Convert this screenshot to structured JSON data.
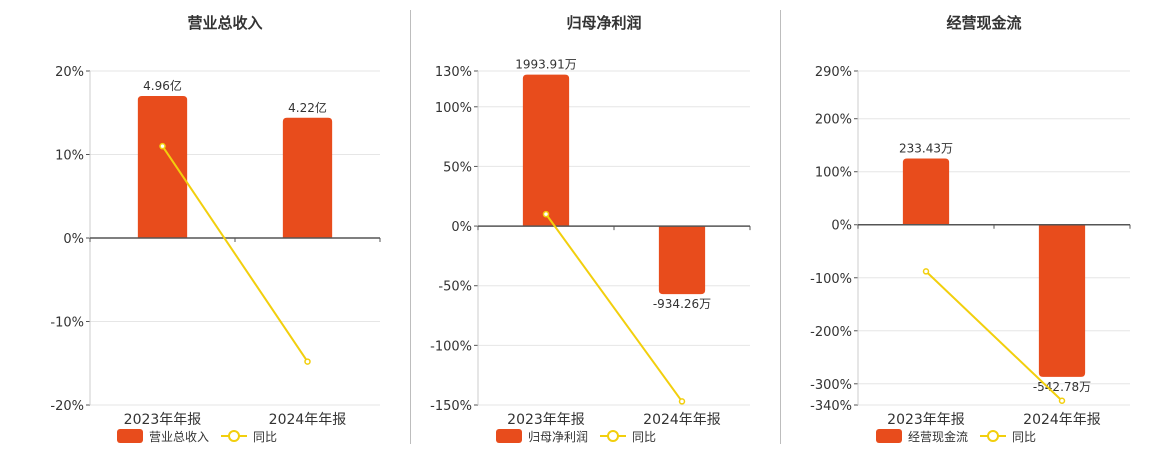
{
  "colors": {
    "bar": "#E84C1C",
    "line": "#F2CF0D",
    "axis": "#555555",
    "grid": "#e6e6e6",
    "text": "#333333"
  },
  "chart_data": [
    {
      "type": "bar",
      "title": "营业总收入",
      "categories": [
        "2023年年报",
        "2024年年报"
      ],
      "bar_values": [
        17.0,
        14.4
      ],
      "bar_labels": [
        "4.96亿",
        "4.22亿"
      ],
      "line_values": [
        11.0,
        -14.8
      ],
      "series": [
        {
          "name": "营业总收入",
          "kind": "bar"
        },
        {
          "name": "同比",
          "kind": "line"
        }
      ],
      "ylim": [
        -20,
        20
      ],
      "yticks": [
        20,
        10,
        0,
        -10,
        -20
      ],
      "ytick_labels": [
        "20%",
        "10%",
        "0%",
        "-10%",
        "-20%"
      ],
      "grid": true,
      "legend": "bottom"
    },
    {
      "type": "bar",
      "title": "归母净利润",
      "categories": [
        "2023年年报",
        "2024年年报"
      ],
      "bar_values": [
        127.0,
        -57.0
      ],
      "bar_labels": [
        "1993.91万",
        "-934.26万"
      ],
      "line_values": [
        10.0,
        -147.0
      ],
      "series": [
        {
          "name": "归母净利润",
          "kind": "bar"
        },
        {
          "name": "同比",
          "kind": "line"
        }
      ],
      "ylim": [
        -150,
        130
      ],
      "yticks": [
        130,
        100,
        50,
        0,
        -50,
        -100,
        -150
      ],
      "ytick_labels": [
        "130%",
        "100%",
        "50%",
        "0%",
        "-50%",
        "-100%",
        "-150%"
      ],
      "grid": true,
      "legend": "bottom"
    },
    {
      "type": "bar",
      "title": "经营现金流",
      "categories": [
        "2023年年报",
        "2024年年报"
      ],
      "bar_values": [
        125.0,
        -287.0
      ],
      "bar_labels": [
        "233.43万",
        "-542.78万"
      ],
      "line_values": [
        -88.0,
        -332.0
      ],
      "series": [
        {
          "name": "经营现金流",
          "kind": "bar"
        },
        {
          "name": "同比",
          "kind": "line"
        }
      ],
      "ylim": [
        -340,
        290
      ],
      "yticks": [
        290,
        200,
        100,
        0,
        -100,
        -200,
        -300,
        -340
      ],
      "ytick_labels": [
        "290%",
        "200%",
        "100%",
        "0%",
        "-100%",
        "-200%",
        "-300%",
        "-340%"
      ],
      "grid": true,
      "legend": "bottom"
    }
  ]
}
